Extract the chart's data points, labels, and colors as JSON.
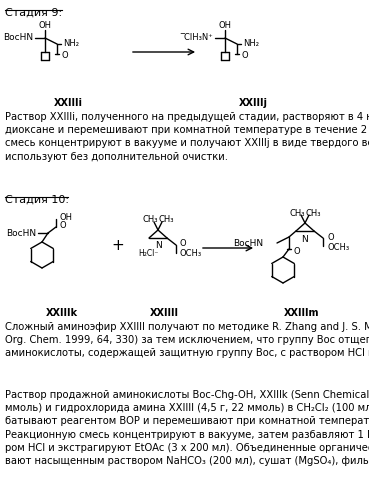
{
  "title_stage9": "Стадия 9:",
  "title_stage10": "Стадия 10:",
  "text_stage9": "Раствор XXIIIi, полученного на предыдущей стадии, растворяют в 4 н растворе HCl в\nдиоксане и перемешивают при комнатной температуре в течение 2 ч. Реакционную\nсмесь концентрируют в вакууме и получают XXIIIj в виде твердого вещества, которое\nиспользуют без дополнительной очистки.",
  "text_stage10a": "Сложный аминоэфир XXIIIl получают по методике R. Zhang and J. S. Madalengoitia (J.\nOrg. Chem. 1999, 64, 330) за тем исключением, что группу Boc отщепляют по реакции\nаминокислоты, содержащей защитную группу Boc, с раствором HCl в метаноле.",
  "text_stage10b": "Раствор продажной аминокислоты Boc-Chg-OH, XXIIIk (Senn Chemicals, 6,64 г, 24,1\nммоль) и гидрохлорида амина XXIIIl (4,5 г, 22 ммоль) в CH₂Cl₂ (100 мл) при 0 °C обра-\nбатывают реагентом BOP и перемешивают при комнатной температуре в течение 15 ч.\nРеакционную смесь концентрируют в вакууме, затем разбавляют 1 М водным раство-\nром HCl и экстрагируют EtOAc (3 х 200 мл). Объединенные органические слои промы-\nвают насыщенным раствором NaHCO₃ (200 мл), сушат (MgSO₄), фильтруют и концен-",
  "bg_color": "#ffffff",
  "text_color": "#000000",
  "font_size_text": 7.2,
  "font_size_title": 8.0,
  "label_XXIIIi": "XXIIIi",
  "label_XXIIIj": "XXIIIj",
  "label_XXIIIk": "XXIIIk",
  "label_XXIIIl": "XXIIIl",
  "label_XXIIIm": "XXIIIm"
}
